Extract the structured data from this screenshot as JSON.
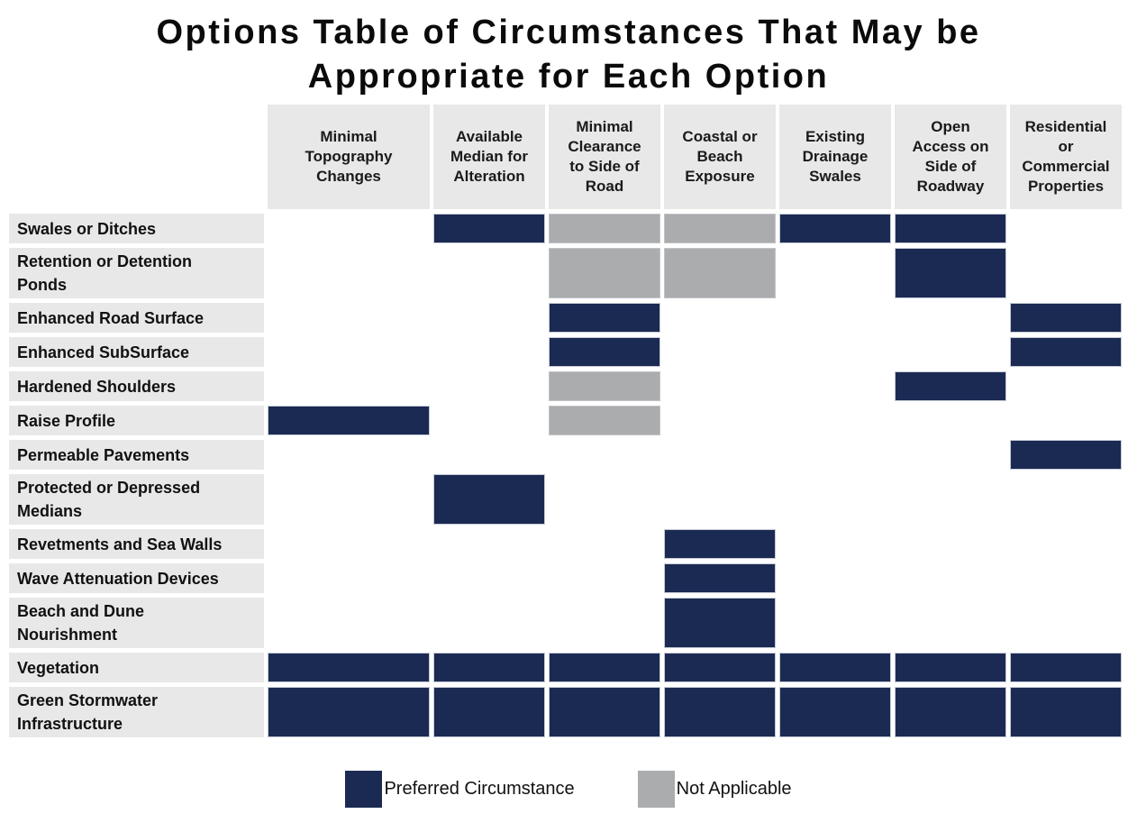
{
  "title": {
    "line1": "Options Table of Circumstances That May be",
    "line2": "Appropriate for Each Option"
  },
  "colors": {
    "preferred": "#1b2a52",
    "not_applicable": "#aaacae",
    "header_bg": "#e8e8e8",
    "row_label_bg": "#e8e8e8"
  },
  "table": {
    "columns": [
      {
        "label": "Minimal Topography Changes",
        "lines": [
          "Minimal",
          "Topography",
          "Changes"
        ]
      },
      {
        "label": "Available Median for Alteration",
        "lines": [
          "Available",
          "Median for",
          "Alteration"
        ]
      },
      {
        "label": "Minimal Clearance to Side of Road",
        "lines": [
          "Minimal",
          "Clearance",
          "to Side of",
          "Road"
        ]
      },
      {
        "label": "Coastal or Beach Exposure",
        "lines": [
          "Coastal or",
          "Beach",
          "Exposure"
        ]
      },
      {
        "label": "Existing Drainage Swales",
        "lines": [
          "Existing",
          "Drainage",
          "Swales"
        ]
      },
      {
        "label": "Open Access on Side of Roadway",
        "lines": [
          "Open",
          "Access on",
          "Side of",
          "Roadway"
        ]
      },
      {
        "label": "Residential or Commercial Properties",
        "lines": [
          "Residential",
          "or",
          "Commercial",
          "Properties"
        ]
      }
    ],
    "rows": [
      {
        "label": "Swales or Ditches",
        "label_lines": [
          "Swales or Ditches"
        ],
        "cells": [
          "",
          "P",
          "N",
          "N",
          "P",
          "P",
          ""
        ]
      },
      {
        "label": "Retention or Detention Ponds",
        "label_lines": [
          "Retention or Detention",
          "Ponds"
        ],
        "cells": [
          "",
          "",
          "N",
          "N",
          "",
          "P",
          ""
        ]
      },
      {
        "label": "Enhanced Road Surface",
        "label_lines": [
          "Enhanced Road Surface"
        ],
        "cells": [
          "",
          "",
          "P",
          "",
          "",
          "",
          "P"
        ]
      },
      {
        "label": "Enhanced SubSurface",
        "label_lines": [
          "Enhanced SubSurface"
        ],
        "cells": [
          "",
          "",
          "P",
          "",
          "",
          "",
          "P"
        ]
      },
      {
        "label": "Hardened Shoulders",
        "label_lines": [
          "Hardened Shoulders"
        ],
        "cells": [
          "",
          "",
          "N",
          "",
          "",
          "P",
          ""
        ]
      },
      {
        "label": "Raise Profile",
        "label_lines": [
          "Raise Profile"
        ],
        "cells": [
          "P",
          "",
          "N",
          "",
          "",
          "",
          ""
        ]
      },
      {
        "label": "Permeable Pavements",
        "label_lines": [
          "Permeable Pavements"
        ],
        "cells": [
          "",
          "",
          "",
          "",
          "",
          "",
          "P"
        ]
      },
      {
        "label": "Protected or Depressed Medians",
        "label_lines": [
          "Protected or Depressed",
          "Medians"
        ],
        "cells": [
          "",
          "P",
          "",
          "",
          "",
          "",
          ""
        ]
      },
      {
        "label": "Revetments and Sea Walls",
        "label_lines": [
          "Revetments and Sea Walls"
        ],
        "cells": [
          "",
          "",
          "",
          "P",
          "",
          "",
          ""
        ]
      },
      {
        "label": "Wave Attenuation Devices",
        "label_lines": [
          "Wave Attenuation Devices"
        ],
        "cells": [
          "",
          "",
          "",
          "P",
          "",
          "",
          ""
        ]
      },
      {
        "label": "Beach and Dune Nourishment",
        "label_lines": [
          "Beach and Dune",
          "Nourishment"
        ],
        "cells": [
          "",
          "",
          "",
          "P",
          "",
          "",
          ""
        ]
      },
      {
        "label": "Vegetation",
        "label_lines": [
          "Vegetation"
        ],
        "cells": [
          "P",
          "P",
          "P",
          "P",
          "P",
          "P",
          "P"
        ]
      },
      {
        "label": "Green Stormwater Infrastructure",
        "label_lines": [
          "Green Stormwater",
          "Infrastructure"
        ],
        "cells": [
          "P",
          "P",
          "P",
          "P",
          "P",
          "P",
          "P"
        ]
      }
    ]
  },
  "legend": {
    "items": [
      {
        "key": "P",
        "label": "Preferred Circumstance",
        "color": "#1b2a52"
      },
      {
        "key": "N",
        "label": "Not Applicable",
        "color": "#aaacae"
      }
    ]
  },
  "chart_data": {
    "type": "heatmap",
    "title": "Options Table of Circumstances That May be Appropriate for Each Option",
    "xlabel": "",
    "ylabel": "",
    "columns": [
      "Minimal Topography Changes",
      "Available Median for Alteration",
      "Minimal Clearance to Side of Road",
      "Coastal or Beach Exposure",
      "Existing Drainage Swales",
      "Open Access on Side of Roadway",
      "Residential or Commercial Properties"
    ],
    "rows": [
      "Swales or Ditches",
      "Retention or Detention Ponds",
      "Enhanced Road Surface",
      "Enhanced SubSurface",
      "Hardened Shoulders",
      "Raise Profile",
      "Permeable Pavements",
      "Protected or Depressed Medians",
      "Revetments and Sea Walls",
      "Wave Attenuation Devices",
      "Beach and Dune Nourishment",
      "Vegetation",
      "Green Stormwater Infrastructure"
    ],
    "values": [
      [
        "",
        "P",
        "N",
        "N",
        "P",
        "P",
        ""
      ],
      [
        "",
        "",
        "N",
        "N",
        "",
        "P",
        ""
      ],
      [
        "",
        "",
        "P",
        "",
        "",
        "",
        "P"
      ],
      [
        "",
        "",
        "P",
        "",
        "",
        "",
        "P"
      ],
      [
        "",
        "",
        "N",
        "",
        "",
        "P",
        ""
      ],
      [
        "P",
        "",
        "N",
        "",
        "",
        "",
        ""
      ],
      [
        "",
        "",
        "",
        "",
        "",
        "",
        "P"
      ],
      [
        "",
        "P",
        "",
        "",
        "",
        "",
        ""
      ],
      [
        "",
        "",
        "",
        "P",
        "",
        "",
        ""
      ],
      [
        "",
        "",
        "",
        "P",
        "",
        "",
        ""
      ],
      [
        "",
        "",
        "",
        "P",
        "",
        "",
        ""
      ],
      [
        "P",
        "P",
        "P",
        "P",
        "P",
        "P",
        "P"
      ],
      [
        "P",
        "P",
        "P",
        "P",
        "P",
        "P",
        "P"
      ]
    ],
    "value_legend": {
      "P": "Preferred Circumstance",
      "N": "Not Applicable",
      "": "blank"
    },
    "legend_position": "bottom",
    "grid": false
  }
}
